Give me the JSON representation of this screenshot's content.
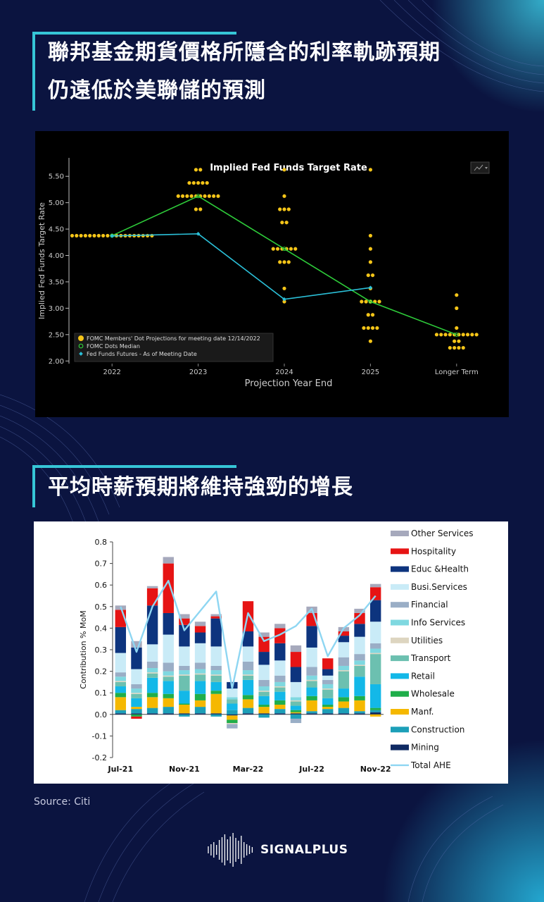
{
  "headline_1": {
    "line_1": "聯邦基金期貨價格所隱含的利率軌跡預期",
    "line_2": "仍遠低於美聯儲的預測"
  },
  "headline_2": {
    "line_1": "平均時薪預期將維持強勁的增長"
  },
  "source": "Source: Citi",
  "brand": {
    "name": "SIGNALPLUS"
  },
  "colors": {
    "background": "#0b1440",
    "accent": "#36c6d6"
  },
  "chart_data": [
    {
      "type": "scatter",
      "title": "Implied Fed Funds Target Rate",
      "xlabel": "Projection Year End",
      "ylabel": "Implied Fed Funds Target Rate",
      "categories": [
        "2022",
        "2023",
        "2024",
        "2025",
        "Longer Term"
      ],
      "ylim": [
        1.95,
        5.85
      ],
      "yticks": [
        "2.00",
        "2.50",
        "3.00",
        "3.50",
        "4.00",
        "4.50",
        "5.00",
        "5.50"
      ],
      "legend_position": "bottom-left",
      "menu_icon": "chart-options-icon",
      "dots": {
        "name": "FOMC Members' Dot Projections for meeting date 12/14/2022",
        "color": "#f5c518",
        "groups": [
          {
            "category": "2022",
            "levels": [
              {
                "rate": 4.375,
                "count": 19
              }
            ]
          },
          {
            "category": "2023",
            "levels": [
              {
                "rate": 5.625,
                "count": 2
              },
              {
                "rate": 5.375,
                "count": 5
              },
              {
                "rate": 5.125,
                "count": 10
              },
              {
                "rate": 4.875,
                "count": 2
              }
            ]
          },
          {
            "category": "2024",
            "levels": [
              {
                "rate": 5.625,
                "count": 1
              },
              {
                "rate": 5.125,
                "count": 1
              },
              {
                "rate": 4.875,
                "count": 3
              },
              {
                "rate": 4.625,
                "count": 2
              },
              {
                "rate": 4.125,
                "count": 6
              },
              {
                "rate": 3.875,
                "count": 3
              },
              {
                "rate": 3.375,
                "count": 1
              },
              {
                "rate": 3.125,
                "count": 1
              }
            ]
          },
          {
            "category": "2025",
            "levels": [
              {
                "rate": 5.625,
                "count": 1
              },
              {
                "rate": 4.375,
                "count": 1
              },
              {
                "rate": 4.125,
                "count": 1
              },
              {
                "rate": 3.875,
                "count": 1
              },
              {
                "rate": 3.625,
                "count": 2
              },
              {
                "rate": 3.375,
                "count": 1
              },
              {
                "rate": 3.125,
                "count": 5
              },
              {
                "rate": 2.875,
                "count": 2
              },
              {
                "rate": 2.625,
                "count": 4
              },
              {
                "rate": 2.375,
                "count": 1
              }
            ]
          },
          {
            "category": "Longer Term",
            "levels": [
              {
                "rate": 3.25,
                "count": 1
              },
              {
                "rate": 3.0,
                "count": 1
              },
              {
                "rate": 2.625,
                "count": 1
              },
              {
                "rate": 2.5,
                "count": 10
              },
              {
                "rate": 2.375,
                "count": 2
              },
              {
                "rate": 2.25,
                "count": 4
              }
            ]
          }
        ]
      },
      "series": [
        {
          "name": "FOMC Dots Median",
          "color": "#2ecc3a",
          "values": [
            4.375,
            5.125,
            4.125,
            3.125,
            2.5
          ]
        },
        {
          "name": "Fed Funds Futures - As of Meeting Date",
          "color": "#2bc0d8",
          "values": [
            4.37,
            4.41,
            3.17,
            3.39,
            null
          ]
        }
      ]
    },
    {
      "type": "bar",
      "stacked": true,
      "ylabel": "Contribution % MoM",
      "ylim": [
        -0.2,
        0.8
      ],
      "yticks": [
        "-0.2",
        "-0.1",
        "0.0",
        "0.1",
        "0.2",
        "0.3",
        "0.4",
        "0.5",
        "0.6",
        "0.7",
        "0.8"
      ],
      "categories": [
        "Jul-21",
        "Aug-21",
        "Sep-21",
        "Oct-21",
        "Nov-21",
        "Dec-21",
        "Jan-22",
        "Feb-22",
        "Mar-22",
        "Apr-22",
        "May-22",
        "Jun-22",
        "Jul-22",
        "Aug-22",
        "Sep-22",
        "Oct-22",
        "Nov-22"
      ],
      "xtick_labels": [
        "Jul-21",
        "Nov-21",
        "Mar-22",
        "Jul-22",
        "Nov-22"
      ],
      "legend_position": "right",
      "series": [
        {
          "name": "Mining",
          "color": "#0f2a63",
          "values": [
            0.005,
            0.005,
            0.005,
            0.005,
            0.005,
            0.005,
            0.005,
            -0.005,
            0.005,
            0.005,
            0.005,
            0.005,
            0.005,
            0.005,
            0.005,
            0.005,
            0.01
          ]
        },
        {
          "name": "Construction",
          "color": "#1c9fb8",
          "values": [
            0.015,
            0.02,
            0.025,
            0.03,
            -0.01,
            0.03,
            -0.01,
            0.02,
            0.025,
            -0.015,
            0.02,
            -0.02,
            0.01,
            0.02,
            0.025,
            0.01,
            0.01
          ]
        },
        {
          "name": "Manf.",
          "color": "#f5b800",
          "values": [
            0.06,
            0.01,
            0.05,
            0.04,
            0.04,
            0.03,
            0.09,
            -0.02,
            0.04,
            0.03,
            0.02,
            0.005,
            0.05,
            0.01,
            0.03,
            0.05,
            -0.01
          ]
        },
        {
          "name": "Wholesale",
          "color": "#1fae4a",
          "values": [
            0.02,
            -0.01,
            0.02,
            0.02,
            0.005,
            0.03,
            0.015,
            -0.015,
            0.02,
            0.01,
            0.02,
            0.01,
            0.02,
            0.01,
            0.02,
            0.02,
            0.01
          ]
        },
        {
          "name": "Retail",
          "color": "#13b8e8",
          "values": [
            0.03,
            0.04,
            0.07,
            0.06,
            0.06,
            0.06,
            0.04,
            0.03,
            0.07,
            0.04,
            0.04,
            0.02,
            0.04,
            0.03,
            0.04,
            0.09,
            0.11
          ]
        },
        {
          "name": "Transport",
          "color": "#6cc0b0",
          "values": [
            0.02,
            0.02,
            0.02,
            0.02,
            0.07,
            0.03,
            0.03,
            0.02,
            0.02,
            0.02,
            0.02,
            0.02,
            0.03,
            0.04,
            0.08,
            0.05,
            0.14
          ]
        },
        {
          "name": "Utilities",
          "color": "#ddd5c0",
          "values": [
            0.005,
            0.005,
            0.005,
            0.005,
            0.005,
            0.005,
            0.005,
            -0.005,
            0.005,
            0.005,
            0.005,
            0.005,
            0.005,
            0.005,
            0.005,
            0.005,
            0.005
          ]
        },
        {
          "name": "Info Services",
          "color": "#7fd8e0",
          "values": [
            0.02,
            0.02,
            0.02,
            0.02,
            0.02,
            0.02,
            0.02,
            0.01,
            0.02,
            0.02,
            0.02,
            0.015,
            0.02,
            0.02,
            0.02,
            0.02,
            0.02
          ]
        },
        {
          "name": "Financial",
          "color": "#9aaec6",
          "values": [
            0.02,
            0.02,
            0.03,
            0.04,
            0.02,
            0.03,
            0.02,
            -0.02,
            0.04,
            0.03,
            0.03,
            -0.02,
            0.04,
            0.02,
            0.04,
            0.03,
            0.025
          ]
        },
        {
          "name": "Busi.Services",
          "color": "#c9ebf7",
          "values": [
            0.09,
            0.07,
            0.08,
            0.13,
            0.09,
            0.09,
            0.09,
            0.04,
            0.07,
            0.07,
            0.07,
            0.07,
            0.09,
            0.02,
            0.07,
            0.08,
            0.1
          ]
        },
        {
          "name": "Educ &Health",
          "color": "#0d347e",
          "values": [
            0.12,
            0.1,
            0.18,
            0.1,
            0.1,
            0.05,
            0.13,
            0.03,
            0.07,
            0.06,
            0.08,
            0.07,
            0.1,
            0.03,
            0.03,
            0.06,
            0.1
          ]
        },
        {
          "name": "Hospitality",
          "color": "#e61414",
          "values": [
            0.08,
            -0.01,
            0.08,
            0.23,
            0.03,
            0.03,
            0.01,
            0.0,
            0.14,
            0.07,
            0.07,
            0.07,
            0.06,
            0.05,
            0.02,
            0.05,
            0.06
          ]
        },
        {
          "name": "Other Services",
          "color": "#a6a9bc",
          "values": [
            0.02,
            0.03,
            0.01,
            0.03,
            0.02,
            0.02,
            0.01,
            0.0,
            0.0,
            0.02,
            0.02,
            0.03,
            0.03,
            0.0,
            0.02,
            0.02,
            0.015
          ]
        }
      ],
      "line": {
        "name": "Total AHE",
        "color": "#8ed6f2",
        "values": [
          0.5,
          0.29,
          0.5,
          0.62,
          0.39,
          0.48,
          0.57,
          0.12,
          0.47,
          0.34,
          0.37,
          0.41,
          0.49,
          0.27,
          0.4,
          0.46,
          0.55
        ]
      }
    }
  ]
}
